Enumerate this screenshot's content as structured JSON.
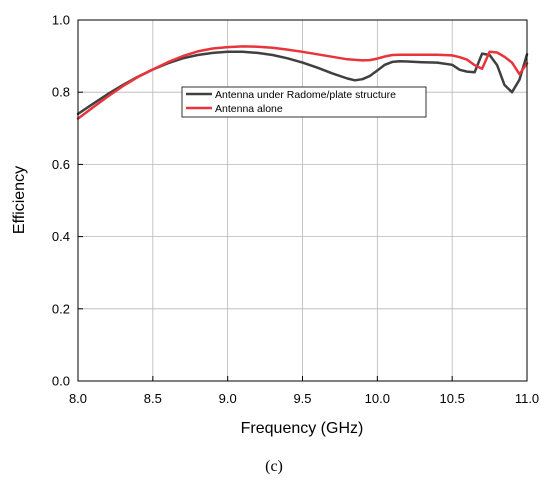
{
  "chart_data": {
    "type": "line",
    "xlabel": "Frequency (GHz)",
    "ylabel": "Efficiency",
    "xlim": [
      8.0,
      11.0
    ],
    "ylim": [
      0.0,
      1.0
    ],
    "x_ticks": [
      "8.0",
      "8.5",
      "9.0",
      "9.5",
      "10.0",
      "10.5",
      "11.0"
    ],
    "y_ticks": [
      "0.0",
      "0.2",
      "0.4",
      "0.6",
      "0.8",
      "1.0"
    ],
    "grid": true,
    "legend_position": "upper-center",
    "panel_label": "(c)",
    "series": [
      {
        "name": "Antenna under Radome/plate structure",
        "color": "#404040",
        "x": [
          8.0,
          8.1,
          8.2,
          8.3,
          8.4,
          8.5,
          8.6,
          8.7,
          8.8,
          8.9,
          9.0,
          9.1,
          9.2,
          9.3,
          9.4,
          9.5,
          9.6,
          9.7,
          9.8,
          9.85,
          9.9,
          9.95,
          10.0,
          10.05,
          10.1,
          10.15,
          10.2,
          10.3,
          10.4,
          10.5,
          10.55,
          10.6,
          10.65,
          10.7,
          10.75,
          10.8,
          10.85,
          10.9,
          10.95,
          11.0
        ],
        "y": [
          0.74,
          0.768,
          0.795,
          0.82,
          0.843,
          0.863,
          0.88,
          0.894,
          0.903,
          0.909,
          0.912,
          0.912,
          0.909,
          0.903,
          0.894,
          0.882,
          0.868,
          0.852,
          0.838,
          0.833,
          0.836,
          0.845,
          0.86,
          0.876,
          0.884,
          0.886,
          0.885,
          0.883,
          0.882,
          0.876,
          0.862,
          0.857,
          0.855,
          0.907,
          0.903,
          0.875,
          0.82,
          0.8,
          0.835,
          0.905
        ]
      },
      {
        "name": "Antenna alone",
        "color": "#e8343a",
        "x": [
          8.0,
          8.1,
          8.2,
          8.3,
          8.4,
          8.5,
          8.6,
          8.7,
          8.8,
          8.9,
          9.0,
          9.1,
          9.2,
          9.3,
          9.4,
          9.5,
          9.6,
          9.7,
          9.8,
          9.9,
          9.95,
          10.0,
          10.05,
          10.1,
          10.15,
          10.2,
          10.3,
          10.4,
          10.5,
          10.55,
          10.6,
          10.65,
          10.7,
          10.75,
          10.8,
          10.85,
          10.9,
          10.95,
          11.0
        ],
        "y": [
          0.727,
          0.758,
          0.788,
          0.817,
          0.842,
          0.863,
          0.883,
          0.9,
          0.913,
          0.921,
          0.925,
          0.927,
          0.926,
          0.923,
          0.918,
          0.912,
          0.905,
          0.898,
          0.891,
          0.888,
          0.889,
          0.893,
          0.899,
          0.903,
          0.904,
          0.904,
          0.904,
          0.904,
          0.902,
          0.897,
          0.89,
          0.875,
          0.865,
          0.912,
          0.91,
          0.898,
          0.882,
          0.85,
          0.88
        ]
      }
    ]
  }
}
